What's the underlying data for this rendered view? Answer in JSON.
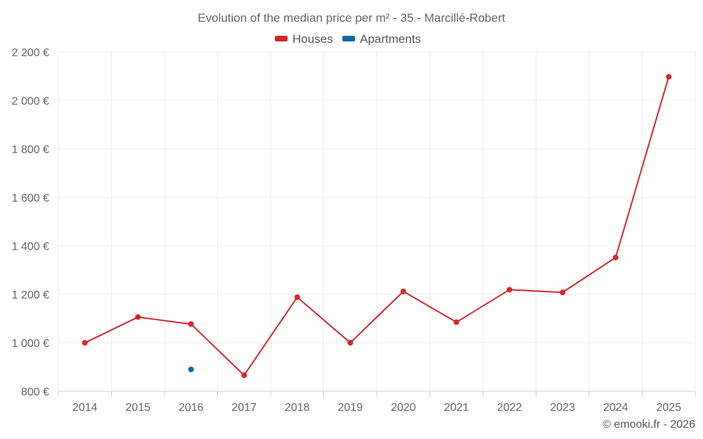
{
  "chart_data": {
    "type": "line",
    "title": "Evolution of the median price per m² - 35 - Marcillé-Robert",
    "x": [
      "2014",
      "2015",
      "2016",
      "2017",
      "2018",
      "2019",
      "2020",
      "2021",
      "2022",
      "2023",
      "2024",
      "2025"
    ],
    "ylim": [
      800,
      2200
    ],
    "y_ticks": [
      800,
      1000,
      1200,
      1400,
      1600,
      1800,
      2000,
      2200
    ],
    "y_tick_labels": [
      "800 €",
      "1 000 €",
      "1 200 €",
      "1 400 €",
      "1 600 €",
      "1 800 €",
      "2 000 €",
      "2 200 €"
    ],
    "grid": true,
    "legend_position": "top-center",
    "series": [
      {
        "name": "Houses",
        "color": "#d62728",
        "values": [
          1000,
          1106,
          1077,
          866,
          1188,
          1000,
          1212,
          1085,
          1219,
          1208,
          1352,
          2098
        ]
      },
      {
        "name": "Apartments",
        "color": "#0a6aa1",
        "values": [
          null,
          null,
          890,
          null,
          null,
          null,
          null,
          null,
          null,
          null,
          null,
          null
        ]
      }
    ]
  },
  "credit": "© emooki.fr - 2026"
}
